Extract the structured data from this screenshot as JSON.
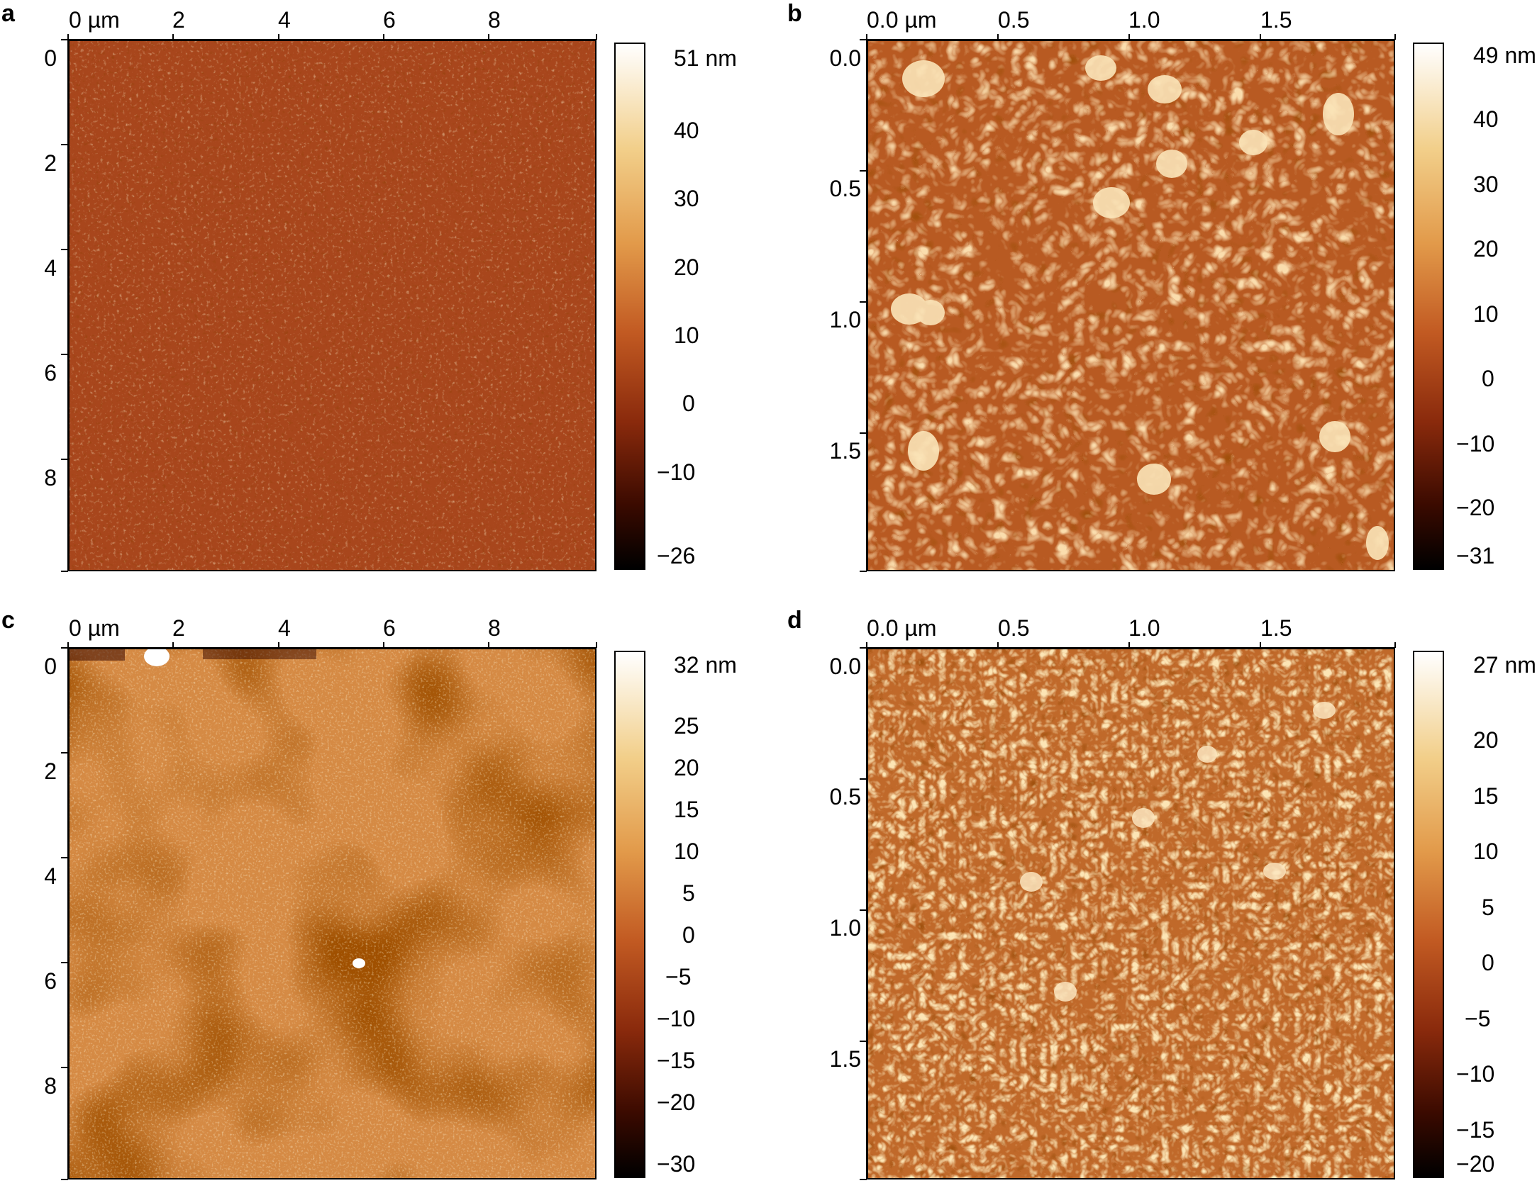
{
  "panels": [
    {
      "letter": "a",
      "x_ticks": [
        "0 µm",
        "2",
        "4",
        "6",
        "8"
      ],
      "y_ticks": [
        "0",
        "2",
        "4",
        "6",
        "8"
      ],
      "colorbar": [
        "51 nm",
        "40",
        "30",
        "20",
        "10",
        "0",
        "−10",
        "−26"
      ]
    },
    {
      "letter": "b",
      "x_ticks": [
        "0.0 µm",
        "0.5",
        "1.0",
        "1.5"
      ],
      "y_ticks": [
        "0.0",
        "0.5",
        "1.0",
        "1.5"
      ],
      "colorbar": [
        "49 nm",
        "40",
        "30",
        "20",
        "10",
        "0",
        "−10",
        "−20",
        "−31"
      ]
    },
    {
      "letter": "c",
      "x_ticks": [
        "0 µm",
        "2",
        "4",
        "6",
        "8"
      ],
      "y_ticks": [
        "0",
        "2",
        "4",
        "6",
        "8"
      ],
      "colorbar": [
        "32 nm",
        "25",
        "20",
        "15",
        "10",
        "5",
        "0",
        "−5",
        "−10",
        "−15",
        "−20",
        "−30"
      ]
    },
    {
      "letter": "d",
      "x_ticks": [
        "0.0 µm",
        "0.5",
        "1.0",
        "1.5"
      ],
      "y_ticks": [
        "0.0",
        "0.5",
        "1.0",
        "1.5"
      ],
      "colorbar": [
        "27 nm",
        "20",
        "15",
        "10",
        "5",
        "0",
        "−5",
        "−10",
        "−15",
        "−20"
      ]
    }
  ],
  "colormap": [
    "#000000",
    "#3a0a00",
    "#8a2a0c",
    "#c25a22",
    "#e29a4a",
    "#f2cf8a",
    "#ffffff"
  ]
}
